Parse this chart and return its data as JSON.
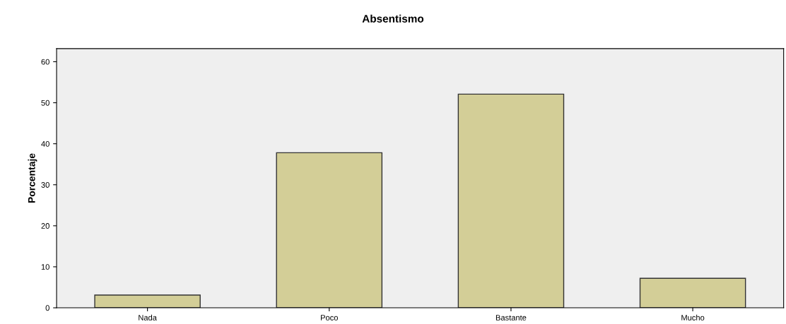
{
  "chart_data": {
    "type": "bar",
    "title": "Absentismo",
    "ylabel": "Porcentaje",
    "categories": [
      "Nada",
      "Poco",
      "Bastante",
      "Mucho"
    ],
    "values": [
      3.1,
      37.8,
      52.1,
      7.2
    ],
    "color": "#d3ce97",
    "ylim": [
      0,
      63.2
    ],
    "yticks": [
      0,
      10,
      20,
      30,
      40,
      50,
      60
    ],
    "grid": false,
    "legend": false
  }
}
